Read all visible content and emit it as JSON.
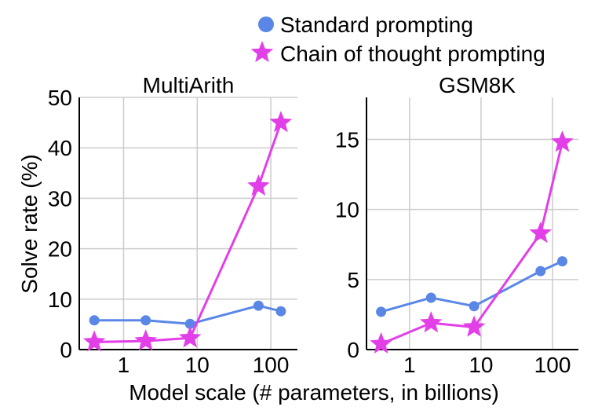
{
  "colors": {
    "standard": "#5a87e6",
    "cot": "#e23fe8",
    "grid": "#cccccc"
  },
  "legend": {
    "standard": "Standard prompting",
    "cot": "Chain of thought prompting"
  },
  "axes": {
    "ylabel": "Solve rate (%)",
    "xlabel": "Model scale (# parameters, in billions)"
  },
  "chart_data": [
    {
      "type": "line",
      "title": "MultiArith",
      "xscale": "log",
      "x": [
        0.4,
        2,
        8,
        68,
        137
      ],
      "xticks": [
        1,
        10,
        100
      ],
      "xtick_labels": [
        "1",
        "10",
        "100"
      ],
      "xlim": [
        0.25,
        230
      ],
      "ylim": [
        0,
        50
      ],
      "yticks": [
        0,
        10,
        20,
        30,
        40,
        50
      ],
      "ytick_labels": [
        "0",
        "10",
        "20",
        "30",
        "40",
        "50"
      ],
      "series": [
        {
          "name": "Standard prompting",
          "marker": "circle",
          "values": [
            5.8,
            5.8,
            5.1,
            8.7,
            7.6
          ]
        },
        {
          "name": "Chain of thought prompting",
          "marker": "star",
          "values": [
            1.5,
            1.7,
            2.3,
            32.4,
            45.0
          ]
        }
      ]
    },
    {
      "type": "line",
      "title": "GSM8K",
      "xscale": "log",
      "x": [
        0.4,
        2,
        8,
        68,
        137
      ],
      "xticks": [
        1,
        10,
        100
      ],
      "xtick_labels": [
        "1",
        "10",
        "100"
      ],
      "xlim": [
        0.25,
        230
      ],
      "ylim": [
        0,
        18
      ],
      "yticks": [
        0,
        5,
        10,
        15
      ],
      "ytick_labels": [
        "0",
        "5",
        "10",
        "15"
      ],
      "series": [
        {
          "name": "Standard prompting",
          "marker": "circle",
          "values": [
            2.7,
            3.7,
            3.1,
            5.6,
            6.3
          ]
        },
        {
          "name": "Chain of thought prompting",
          "marker": "star",
          "values": [
            0.4,
            1.9,
            1.6,
            8.3,
            14.8
          ]
        }
      ]
    }
  ]
}
